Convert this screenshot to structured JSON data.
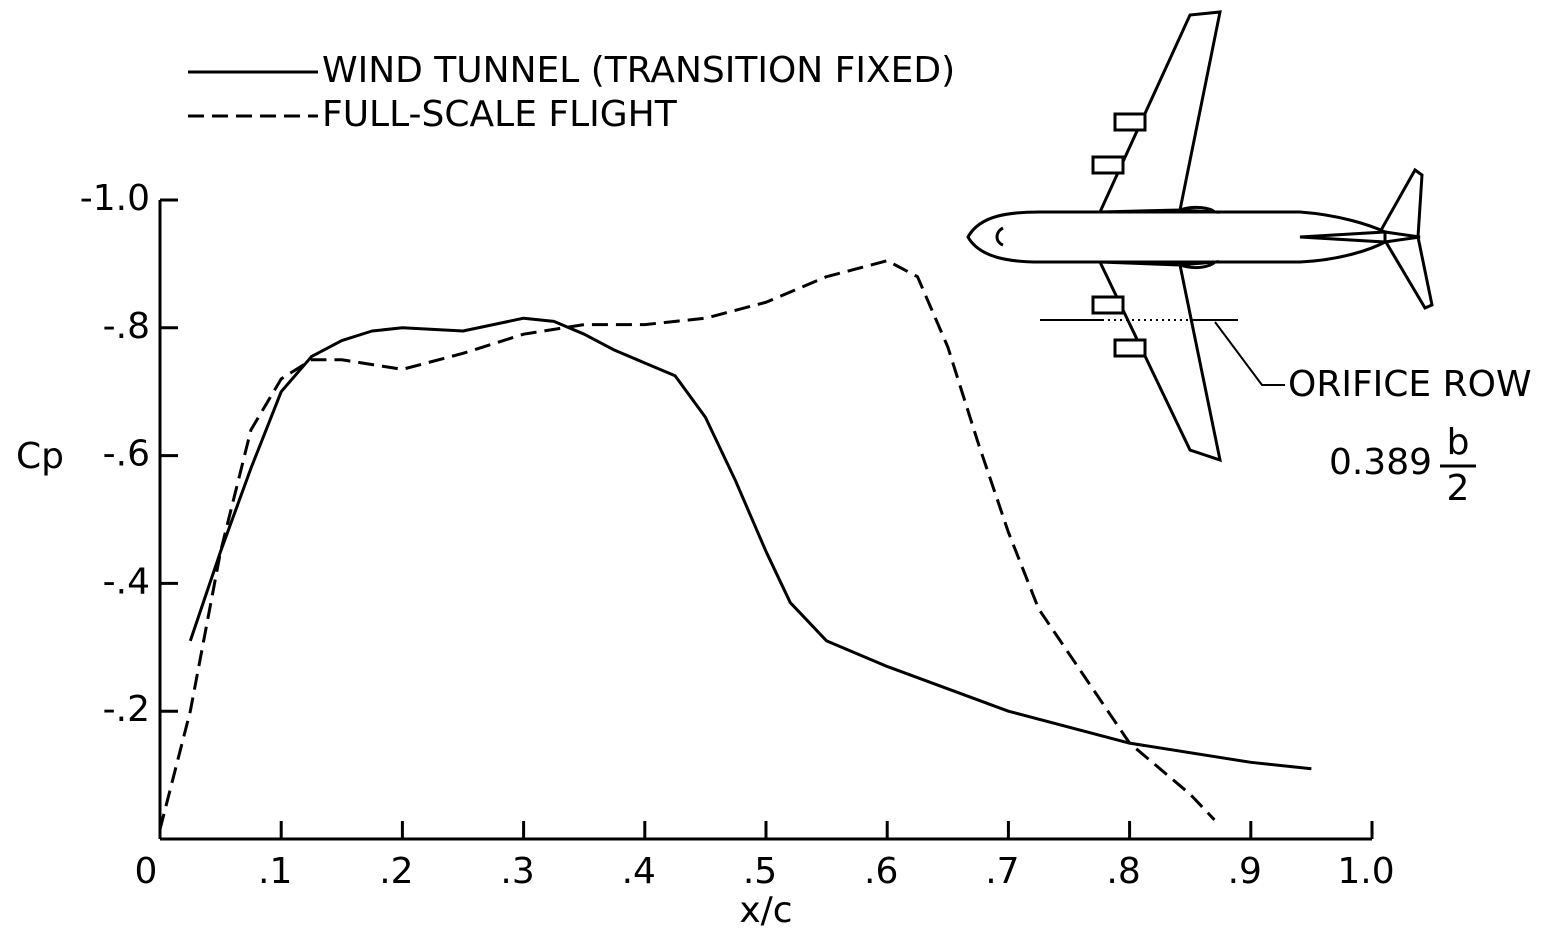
{
  "chart_data": {
    "type": "line",
    "x_label": "x/c",
    "y_label": "Cp",
    "xlim": [
      0,
      1.0
    ],
    "ylim": [
      0,
      -1.0
    ],
    "xticks": [
      0,
      {
        "value": 0.1,
        "label": ".1"
      },
      {
        "value": 0.2,
        "label": ".2"
      },
      {
        "value": 0.3,
        "label": ".3"
      },
      {
        "value": 0.4,
        "label": ".4"
      },
      {
        "value": 0.5,
        "label": ".5"
      },
      {
        "value": 0.6,
        "label": ".6"
      },
      {
        "value": 0.7,
        "label": ".7"
      },
      {
        "value": 0.8,
        "label": ".8"
      },
      {
        "value": 0.9,
        "label": ".9"
      },
      {
        "value": 1.0,
        "label": "1.0"
      }
    ],
    "yticks": [
      {
        "value": -1.0,
        "label": "-1.0"
      },
      {
        "value": -0.8,
        "label": "-.8"
      },
      {
        "value": -0.6,
        "label": "-.6"
      },
      {
        "value": -0.4,
        "label": "-.4"
      },
      {
        "value": -0.2,
        "label": "-.2"
      }
    ],
    "grid": false,
    "legend": "top-left",
    "series": [
      {
        "name": "WIND TUNNEL (TRANSITION FIXED)",
        "color": "#000000",
        "line_style": "solid",
        "x": [
          0.025,
          0.05,
          0.075,
          0.1,
          0.125,
          0.15,
          0.175,
          0.2,
          0.25,
          0.3,
          0.325,
          0.35,
          0.375,
          0.4,
          0.425,
          0.45,
          0.475,
          0.5,
          0.52,
          0.55,
          0.6,
          0.7,
          0.8,
          0.9,
          0.95
        ],
        "values": [
          -0.31,
          -0.45,
          -0.58,
          -0.7,
          -0.755,
          -0.78,
          -0.795,
          -0.8,
          -0.795,
          -0.815,
          -0.81,
          -0.79,
          -0.765,
          -0.745,
          -0.725,
          -0.66,
          -0.56,
          -0.45,
          -0.37,
          -0.31,
          -0.27,
          -0.2,
          -0.15,
          -0.12,
          -0.11
        ]
      },
      {
        "name": "FULL-SCALE FLIGHT",
        "color": "#000000",
        "line_style": "dashed",
        "x": [
          0,
          0.025,
          0.05,
          0.075,
          0.1,
          0.125,
          0.15,
          0.2,
          0.25,
          0.3,
          0.35,
          0.4,
          0.45,
          0.5,
          0.55,
          0.6,
          0.625,
          0.65,
          0.675,
          0.7,
          0.725,
          0.75,
          0.8,
          0.85,
          0.87
        ],
        "values": [
          -0.015,
          -0.2,
          -0.45,
          -0.64,
          -0.72,
          -0.75,
          -0.75,
          -0.735,
          -0.76,
          -0.79,
          -0.805,
          -0.805,
          -0.815,
          -0.84,
          -0.88,
          -0.905,
          -0.88,
          -0.77,
          -0.62,
          -0.48,
          -0.36,
          -0.29,
          -0.15,
          -0.07,
          -0.03
        ]
      }
    ],
    "annotation": {
      "label": "ORIFICE ROW",
      "station": "0.389",
      "numerator": "b",
      "denominator": "2"
    }
  }
}
